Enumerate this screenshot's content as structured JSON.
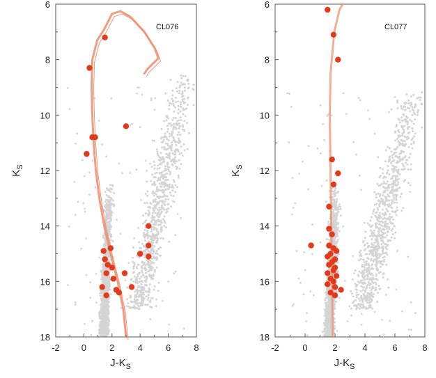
{
  "colors": {
    "field_stars": "#d4d4d4",
    "cluster_members": "#e23a1a",
    "isochrone": "#f08a6a",
    "frame": "#555555"
  },
  "chart_data": [
    {
      "type": "scatter",
      "title": "CL076",
      "xlabel": "J-KS",
      "ylabel": "KS",
      "xlim": [
        -2,
        8
      ],
      "ylim": [
        18,
        6
      ],
      "y_inverted": true,
      "x_ticks": [
        "-2",
        "0",
        "2",
        "4",
        "6",
        "8"
      ],
      "y_ticks": [
        "6",
        "8",
        "10",
        "12",
        "14",
        "16",
        "18"
      ],
      "grid": false,
      "field_population": {
        "description_points": "grey field-star cloud",
        "blue_branch": {
          "x_center": 1.6,
          "x_width": 0.55,
          "y_range": [
            12.5,
            18
          ]
        },
        "red_branch": {
          "x_from": 3.0,
          "x_to": 7.2,
          "y_range": [
            8.5,
            17
          ]
        }
      },
      "series": [
        {
          "role": "cluster-members",
          "points": [
            [
              1.5,
              7.2
            ],
            [
              0.4,
              8.3
            ],
            [
              0.6,
              10.8
            ],
            [
              0.8,
              10.8
            ],
            [
              3.0,
              10.4
            ],
            [
              0.2,
              11.4
            ],
            [
              4.6,
              14.0
            ],
            [
              1.4,
              14.9
            ],
            [
              1.9,
              14.8
            ],
            [
              1.5,
              15.2
            ],
            [
              1.7,
              15.4
            ],
            [
              2.0,
              15.5
            ],
            [
              1.6,
              15.7
            ],
            [
              2.1,
              15.9
            ],
            [
              4.6,
              14.7
            ],
            [
              4.0,
              15.0
            ],
            [
              4.6,
              15.1
            ],
            [
              2.9,
              15.7
            ],
            [
              3.4,
              16.2
            ],
            [
              1.3,
              16.2
            ],
            [
              2.3,
              16.3
            ],
            [
              2.5,
              16.4
            ],
            [
              1.6,
              16.5
            ]
          ]
        },
        {
          "role": "isochrone",
          "points": [
            [
              3.0,
              18.0
            ],
            [
              2.8,
              17.0
            ],
            [
              2.4,
              16.0
            ],
            [
              1.9,
              15.0
            ],
            [
              1.45,
              14.0
            ],
            [
              1.1,
              13.0
            ],
            [
              0.85,
              12.0
            ],
            [
              0.7,
              11.0
            ],
            [
              0.6,
              10.0
            ],
            [
              0.55,
              9.0
            ],
            [
              0.6,
              8.0
            ],
            [
              0.95,
              7.3
            ],
            [
              1.45,
              6.9
            ],
            [
              2.0,
              6.35
            ],
            [
              2.6,
              6.25
            ],
            [
              3.3,
              6.45
            ],
            [
              4.3,
              7.0
            ],
            [
              5.05,
              7.6
            ],
            [
              5.3,
              7.95
            ],
            [
              4.9,
              8.15
            ],
            [
              4.5,
              8.35
            ],
            [
              4.3,
              8.5
            ]
          ]
        }
      ]
    },
    {
      "type": "scatter",
      "title": "CL077",
      "xlabel": "J-KS",
      "ylabel": "KS",
      "xlim": [
        -2,
        8
      ],
      "ylim": [
        18,
        6
      ],
      "y_inverted": true,
      "x_ticks": [
        "-2",
        "0",
        "2",
        "4",
        "6",
        "8"
      ],
      "y_ticks": [
        "6",
        "8",
        "10",
        "12",
        "14",
        "16",
        "18"
      ],
      "grid": false,
      "field_population": {
        "description_points": "grey field-star cloud",
        "blue_branch": {
          "x_center": 1.8,
          "x_width": 0.6,
          "y_range": [
            12.5,
            18
          ]
        },
        "red_branch": {
          "x_from": 3.0,
          "x_to": 7.3,
          "y_range": [
            9,
            17
          ]
        }
      },
      "series": [
        {
          "role": "cluster-members",
          "points": [
            [
              1.5,
              6.2
            ],
            [
              1.9,
              7.1
            ],
            [
              2.2,
              8.0
            ],
            [
              1.8,
              11.6
            ],
            [
              2.2,
              12.1
            ],
            [
              1.9,
              12.5
            ],
            [
              1.6,
              13.3
            ],
            [
              1.6,
              14.1
            ],
            [
              1.8,
              14.3
            ],
            [
              0.4,
              14.7
            ],
            [
              1.6,
              14.7
            ],
            [
              1.9,
              14.8
            ],
            [
              2.1,
              14.9
            ],
            [
              1.7,
              15.0
            ],
            [
              1.5,
              15.1
            ],
            [
              2.0,
              15.2
            ],
            [
              1.8,
              15.3
            ],
            [
              1.6,
              15.4
            ],
            [
              2.0,
              15.5
            ],
            [
              1.9,
              15.6
            ],
            [
              1.5,
              15.7
            ],
            [
              2.1,
              15.8
            ],
            [
              1.7,
              15.9
            ],
            [
              1.9,
              16.0
            ],
            [
              1.5,
              16.1
            ],
            [
              2.0,
              16.2
            ],
            [
              2.4,
              16.3
            ],
            [
              1.7,
              16.4
            ],
            [
              2.0,
              16.5
            ]
          ]
        },
        {
          "role": "isochrone",
          "points": [
            [
              1.85,
              18.0
            ],
            [
              1.8,
              16.0
            ],
            [
              1.75,
              14.0
            ],
            [
              1.7,
              12.0
            ],
            [
              1.65,
              10.0
            ],
            [
              1.7,
              8.5
            ],
            [
              1.95,
              7.0
            ],
            [
              2.3,
              6.2
            ],
            [
              2.5,
              6.0
            ]
          ]
        }
      ]
    }
  ]
}
